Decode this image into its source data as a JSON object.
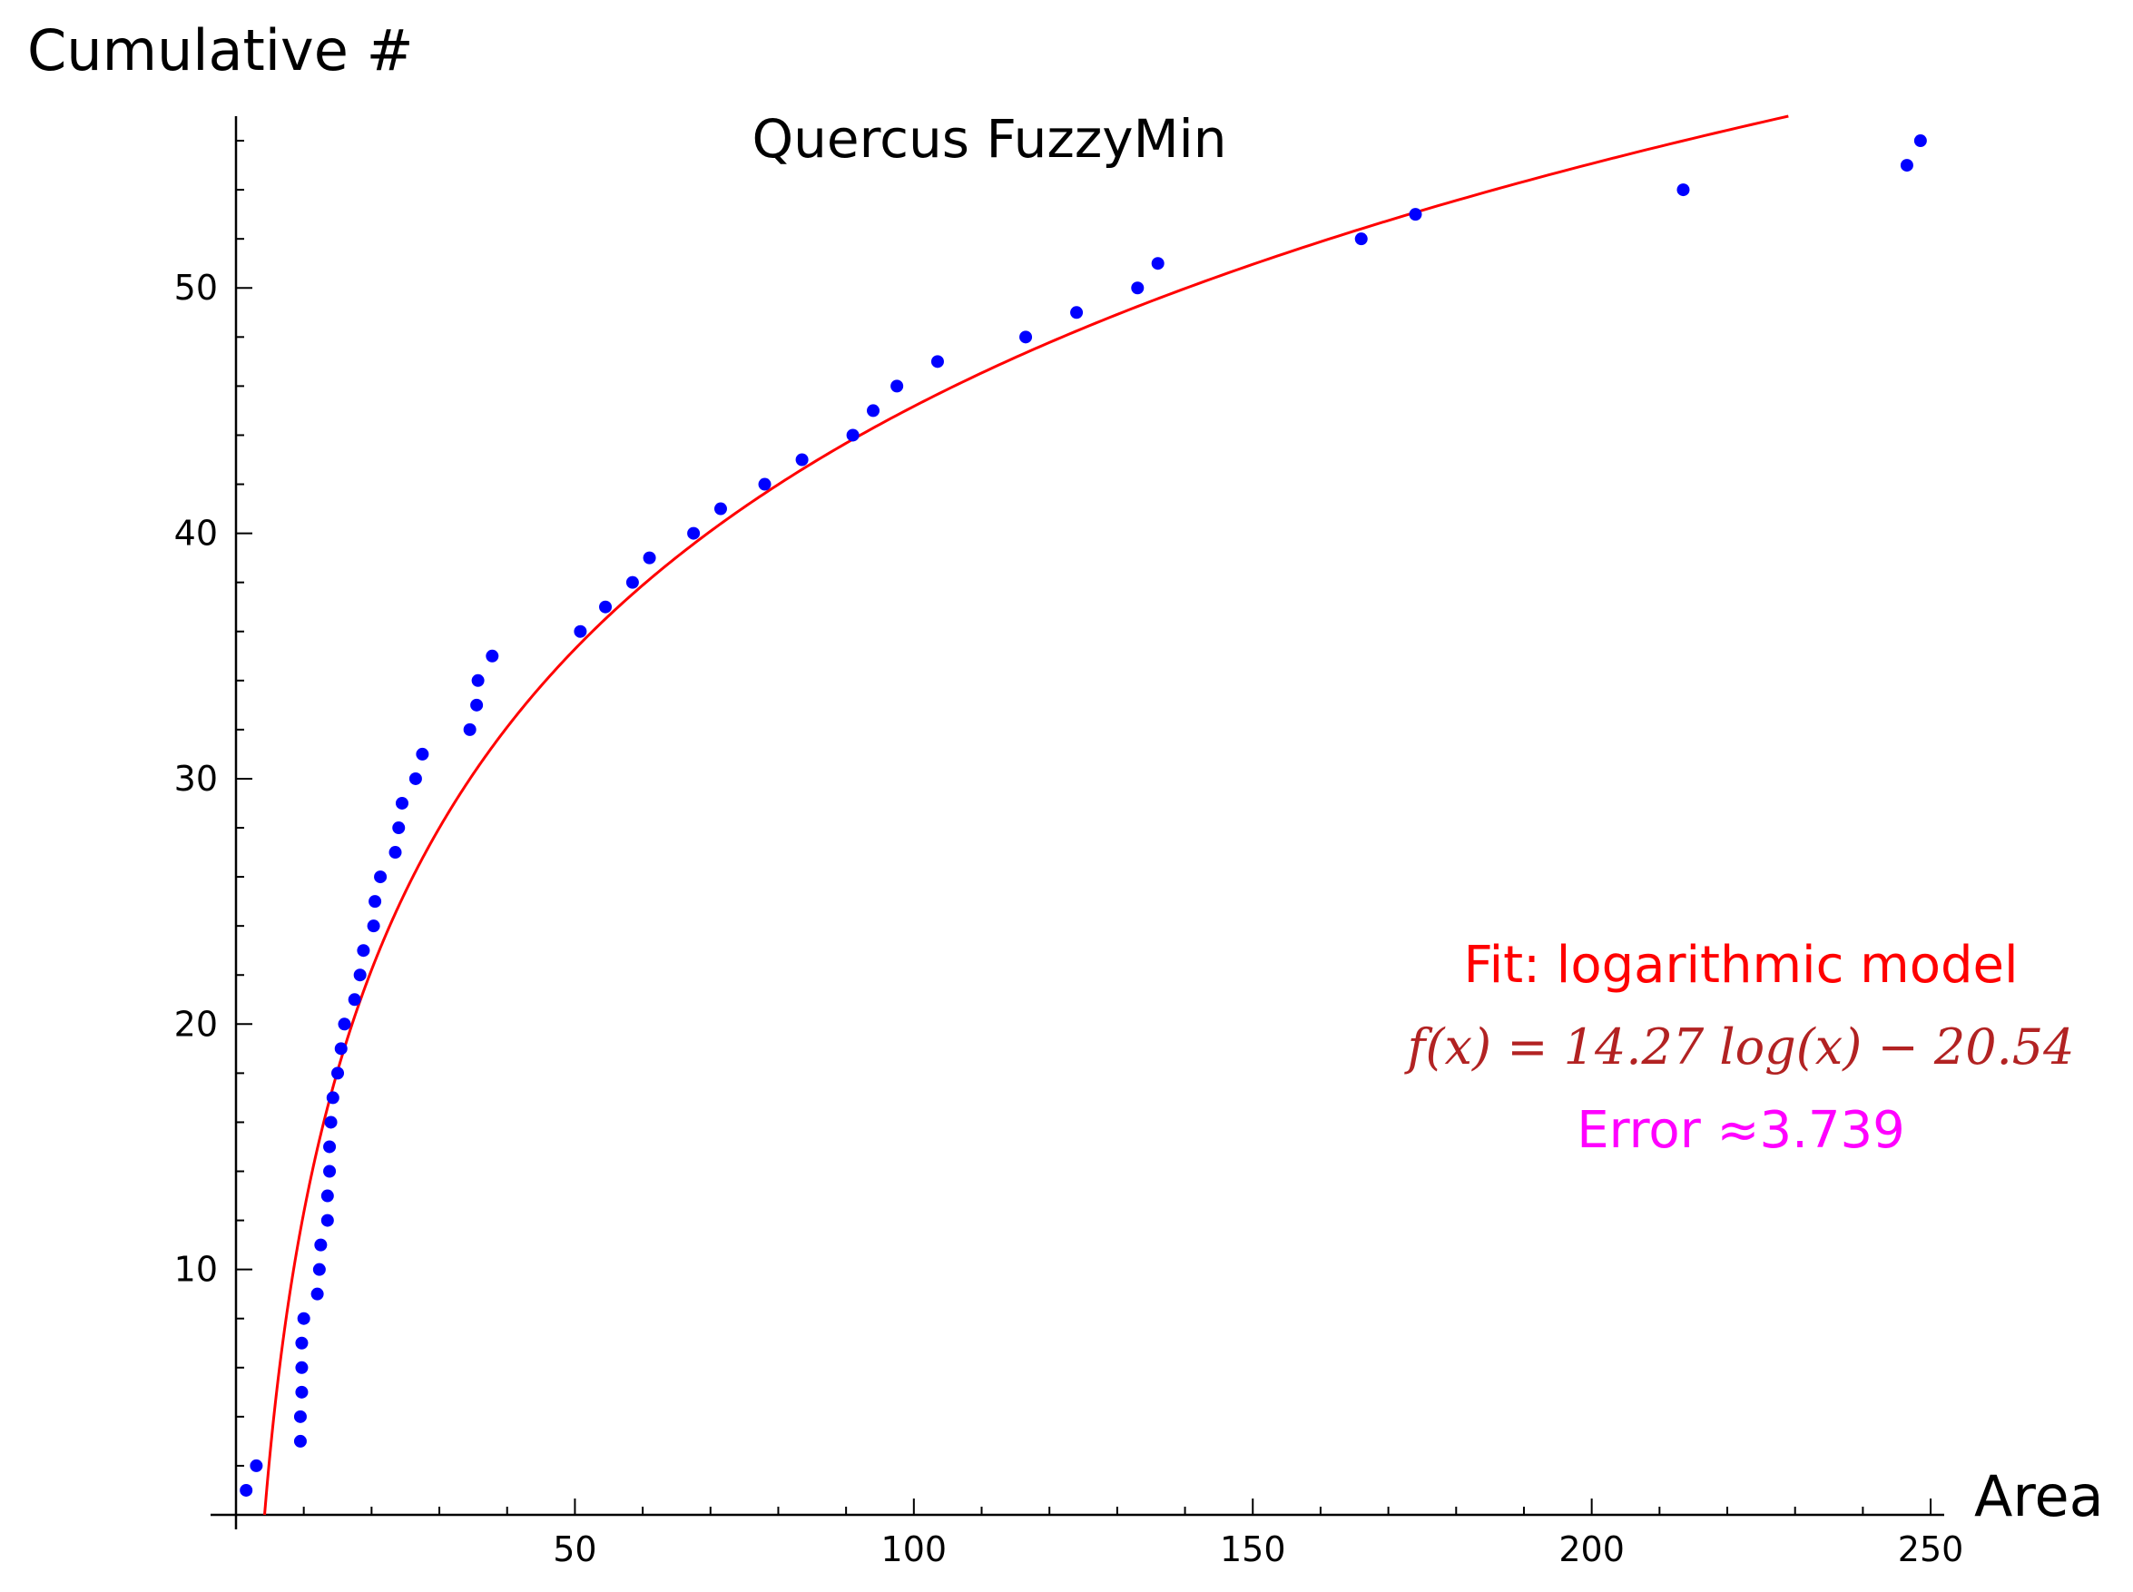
{
  "chart_data": {
    "type": "scatter",
    "title": "Quercus FuzzyMin",
    "xlabel": "Area",
    "ylabel": "Cumulative #",
    "xlim": [
      0,
      252
    ],
    "ylim": [
      0,
      57
    ],
    "x_ticks": [
      50,
      100,
      150,
      200,
      250
    ],
    "y_ticks": [
      10,
      20,
      30,
      40,
      50
    ],
    "grid": false,
    "colors": {
      "points": "#0000ff",
      "fit": "#ff0000",
      "formula": "#b22222",
      "error": "#ff00ff",
      "axes": "#000000"
    },
    "points": [
      [
        1.5,
        1
      ],
      [
        3,
        2
      ],
      [
        9.5,
        3
      ],
      [
        9.5,
        4
      ],
      [
        9.7,
        5
      ],
      [
        9.7,
        6
      ],
      [
        9.7,
        7
      ],
      [
        10,
        8
      ],
      [
        12,
        9
      ],
      [
        12.3,
        10
      ],
      [
        12.5,
        11
      ],
      [
        13.5,
        12
      ],
      [
        13.5,
        13
      ],
      [
        13.8,
        14
      ],
      [
        13.8,
        15
      ],
      [
        14,
        16
      ],
      [
        14.3,
        17
      ],
      [
        15,
        18
      ],
      [
        15.5,
        19
      ],
      [
        16,
        20
      ],
      [
        17.5,
        21
      ],
      [
        18.3,
        22
      ],
      [
        18.8,
        23
      ],
      [
        20.3,
        24
      ],
      [
        20.5,
        25
      ],
      [
        21.3,
        26
      ],
      [
        23.5,
        27
      ],
      [
        24,
        28
      ],
      [
        24.5,
        29
      ],
      [
        26.5,
        30
      ],
      [
        27.5,
        31
      ],
      [
        34.5,
        32
      ],
      [
        35.5,
        33
      ],
      [
        35.7,
        34
      ],
      [
        37.8,
        35
      ],
      [
        50.8,
        36
      ],
      [
        54.5,
        37
      ],
      [
        58.5,
        38
      ],
      [
        61,
        39
      ],
      [
        67.5,
        40
      ],
      [
        71.5,
        41
      ],
      [
        78,
        42
      ],
      [
        83.5,
        43
      ],
      [
        91,
        44
      ],
      [
        94,
        45
      ],
      [
        97.5,
        46
      ],
      [
        103.5,
        47
      ],
      [
        116.5,
        48
      ],
      [
        124,
        49
      ],
      [
        133,
        50
      ],
      [
        136,
        51
      ],
      [
        166,
        52
      ],
      [
        174,
        53
      ],
      [
        213.5,
        54
      ],
      [
        246.5,
        55
      ],
      [
        248.5,
        56
      ]
    ],
    "fit": {
      "label": "Fit: logarithmic model",
      "formula": "f(x) = 14.27 log(x) − 20.54",
      "a": 14.27,
      "b": -20.54
    },
    "error_label": "Error ≈3.739"
  }
}
